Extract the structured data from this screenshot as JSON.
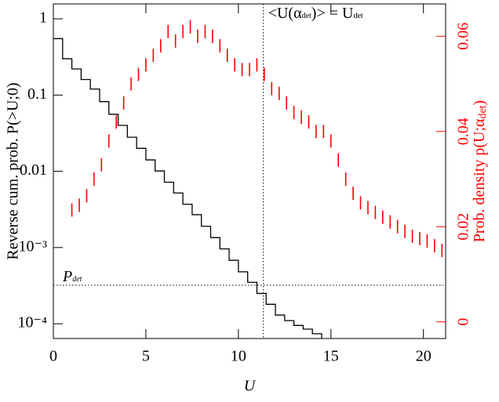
{
  "chart_data": {
    "type": "line",
    "xlabel": "U",
    "ylabel": "Reverse cum. prob. P(>U;0)",
    "y2label": [
      "Prob. density p(U;α",
      "det",
      ")"
    ],
    "xlim": [
      0,
      21.2
    ],
    "xticks": [
      0,
      5,
      10,
      15,
      20
    ],
    "ylim": [
      6.4e-05,
      1.57
    ],
    "ylog": true,
    "yticks": [
      1,
      0.1,
      0.01,
      {
        "value": 0.001,
        "label": "10⁻³"
      },
      {
        "value": 0.0001,
        "label": "10⁻⁴"
      }
    ],
    "y2lim": [
      -0.0035,
      0.0668
    ],
    "y2ticks": [
      0,
      0.02,
      0.04,
      0.06
    ],
    "y2color": "#ff0000",
    "series": [
      {
        "type": "step",
        "color": "#000000",
        "x": [
          0,
          0.5,
          1,
          1.5,
          2,
          2.5,
          3,
          3.5,
          4,
          4.5,
          5,
          5.5,
          6,
          6.5,
          7,
          7.5,
          8,
          8.5,
          9,
          9.5,
          10,
          10.5,
          11,
          11.5,
          12,
          12.5,
          13,
          13.5,
          14,
          14.5
        ],
        "values": [
          0.55,
          0.3,
          0.22,
          0.16,
          0.12,
          0.082,
          0.056,
          0.04,
          0.028,
          0.02,
          0.0141,
          0.0101,
          0.0072,
          0.0052,
          0.0037,
          0.0027,
          0.0019,
          0.00135,
          0.00096,
          0.00068,
          0.00048,
          0.00035,
          0.00025,
          0.00018,
          0.00013,
          0.00011,
          9.5e-05,
          8.5e-05,
          7.4e-05,
          6.4e-05
        ]
      },
      {
        "type": "errorbar",
        "color": "#ff0000",
        "axis": "y2",
        "error": 0.0014,
        "x": [
          1.0,
          1.4,
          1.8,
          2.2,
          2.6,
          3.0,
          3.4,
          3.8,
          4.2,
          4.6,
          5.0,
          5.4,
          5.8,
          6.2,
          6.6,
          7.0,
          7.4,
          7.8,
          8.2,
          8.6,
          9.0,
          9.4,
          9.8,
          10.2,
          10.6,
          11.0,
          11.4,
          11.8,
          12.2,
          12.6,
          13.0,
          13.4,
          13.8,
          14.2,
          14.6,
          15.0,
          15.4,
          15.8,
          16.2,
          16.6,
          17.0,
          17.4,
          17.8,
          18.2,
          18.6,
          19.0,
          19.4,
          19.8,
          20.2,
          20.6,
          21.0
        ],
        "values": [
          0.0235,
          0.0245,
          0.0265,
          0.03,
          0.033,
          0.038,
          0.042,
          0.046,
          0.05,
          0.052,
          0.054,
          0.056,
          0.058,
          0.061,
          0.059,
          0.061,
          0.062,
          0.06,
          0.061,
          0.06,
          0.058,
          0.056,
          0.054,
          0.053,
          0.053,
          0.054,
          0.052,
          0.049,
          0.048,
          0.046,
          0.044,
          0.043,
          0.042,
          0.04,
          0.04,
          0.038,
          0.034,
          0.03,
          0.027,
          0.025,
          0.024,
          0.023,
          0.022,
          0.021,
          0.02,
          0.019,
          0.018,
          0.0175,
          0.017,
          0.016,
          0.015
        ]
      }
    ],
    "annotations": [
      {
        "text": [
          "<U(α",
          "det",
          ")> = U",
          "det"
        ],
        "x": 11.35
      },
      {
        "text": [
          "P",
          "det"
        ],
        "y": 0.00032
      }
    ]
  }
}
